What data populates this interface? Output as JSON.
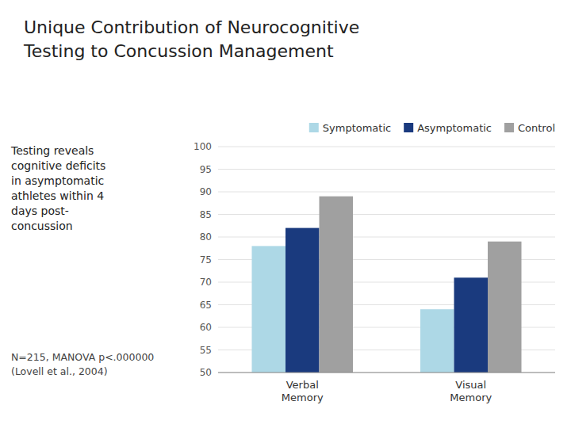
{
  "chart_data": {
    "type": "bar",
    "title": "Unique Contribution of Neurocognitive\nTesting to Concussion Management",
    "categories": [
      "Verbal\nMemory",
      "Visual\nMemory"
    ],
    "series": [
      {
        "name": "Symptomatic",
        "color": "#add8e6",
        "values": [
          78,
          64
        ]
      },
      {
        "name": "Asymptomatic",
        "color": "#1a3a7e",
        "values": [
          82,
          71
        ]
      },
      {
        "name": "Control",
        "color": "#a0a0a0",
        "values": [
          89,
          79
        ]
      }
    ],
    "ylim": [
      50,
      100
    ],
    "yticks": [
      50,
      55,
      60,
      65,
      70,
      75,
      80,
      85,
      90,
      95,
      100
    ],
    "grid": true,
    "legend": "top",
    "annotations": [
      "Testing reveals\ncognitive deficits\nin asymptomatic\nathletes within 4\ndays post-\nconcussion",
      "N=215, MANOVA p<.000000\n(Lovell et al., 2004)"
    ]
  }
}
